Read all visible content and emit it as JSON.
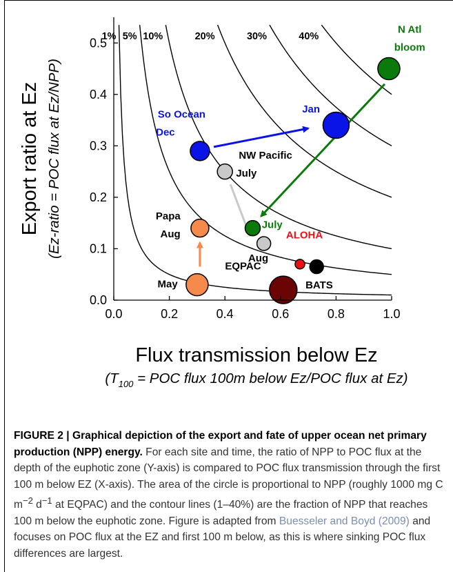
{
  "chart_data": {
    "type": "scatter",
    "title": "",
    "xlabel": "Flux transmission below Ez",
    "xlabel_sub": {
      "pre": "(T",
      "sub": "100",
      "post": " = POC flux 100m below Ez/POC flux at Ez)"
    },
    "ylabel": "Export ratio at Ez",
    "ylabel_sub": "(Ez-ratio = POC flux at Ez/NPP)",
    "xlim": [
      0.0,
      1.0
    ],
    "ylim": [
      0.0,
      0.55
    ],
    "xticks": [
      "0.0",
      "0.2",
      "0.4",
      "0.6",
      "0.8",
      "1.0"
    ],
    "yticks": [
      "0.0",
      "0.1",
      "0.2",
      "0.3",
      "0.4",
      "0.5"
    ],
    "grid": false,
    "contours": [
      {
        "label": "1%",
        "level": 0.01
      },
      {
        "label": "5%",
        "level": 0.05
      },
      {
        "label": "10%",
        "level": 0.1
      },
      {
        "label": "20%",
        "level": 0.2
      },
      {
        "label": "30%",
        "level": 0.3
      },
      {
        "label": "40%",
        "level": 0.4
      }
    ],
    "points": [
      {
        "x": 0.31,
        "y": 0.29,
        "r": 14,
        "color": "#0a14e6"
      },
      {
        "x": 0.8,
        "y": 0.34,
        "r": 19,
        "color": "#0a14e6"
      },
      {
        "x": 0.4,
        "y": 0.25,
        "r": 11,
        "color": "#c9c9c9"
      },
      {
        "x": 0.54,
        "y": 0.11,
        "r": 10,
        "color": "#c9c9c9"
      },
      {
        "x": 0.99,
        "y": 0.45,
        "r": 16,
        "color": "#0a7a0a"
      },
      {
        "x": 0.5,
        "y": 0.14,
        "r": 11,
        "color": "#0a7a0a"
      },
      {
        "x": 0.31,
        "y": 0.14,
        "r": 13,
        "color": "#f58a4a"
      },
      {
        "x": 0.3,
        "y": 0.03,
        "r": 16,
        "color": "#f58a4a"
      },
      {
        "x": 0.61,
        "y": 0.02,
        "r": 20,
        "color": "#6b0505"
      },
      {
        "x": 0.67,
        "y": 0.07,
        "r": 7,
        "color": "#ee1111"
      },
      {
        "x": 0.73,
        "y": 0.065,
        "r": 10,
        "color": "#000000"
      }
    ],
    "annotations": [
      {
        "text": "So Ocean",
        "x": 0.33,
        "y": 0.355,
        "color": "#0a14e6",
        "anchor": "end"
      },
      {
        "text": "Dec",
        "x": 0.22,
        "y": 0.32,
        "color": "#0a14e6",
        "anchor": "end"
      },
      {
        "text": "Jan",
        "x": 0.71,
        "y": 0.365,
        "color": "#0a14e6",
        "anchor": "middle"
      },
      {
        "text": "NW Pacific",
        "x": 0.45,
        "y": 0.275,
        "color": "#000000",
        "anchor": "start"
      },
      {
        "text": "July",
        "x": 0.44,
        "y": 0.24,
        "color": "#000000",
        "anchor": "start"
      },
      {
        "text": "N Atl",
        "x": 1.065,
        "y": 0.52,
        "color": "#0a7a0a",
        "anchor": "middle"
      },
      {
        "text": "bloom",
        "x": 1.065,
        "y": 0.485,
        "color": "#0a7a0a",
        "anchor": "middle"
      },
      {
        "text": "July",
        "x": 0.57,
        "y": 0.14,
        "color": "#0a7a0a",
        "anchor": "middle"
      },
      {
        "text": "Papa",
        "x": 0.24,
        "y": 0.157,
        "color": "#000000",
        "anchor": "end"
      },
      {
        "text": "Aug",
        "x": 0.24,
        "y": 0.122,
        "color": "#000000",
        "anchor": "end"
      },
      {
        "text": "Aug",
        "x": 0.52,
        "y": 0.075,
        "color": "#000000",
        "anchor": "middle"
      },
      {
        "text": "ALOHA",
        "x": 0.62,
        "y": 0.12,
        "color": "#ee1111",
        "anchor": "start"
      },
      {
        "text": "EQPAC",
        "x": 0.53,
        "y": 0.06,
        "color": "#000000",
        "anchor": "end"
      },
      {
        "text": "BATS",
        "x": 0.69,
        "y": 0.023,
        "color": "#000000",
        "anchor": "start"
      },
      {
        "text": "May",
        "x": 0.23,
        "y": 0.025,
        "color": "#000000",
        "anchor": "end"
      }
    ],
    "arrows": [
      {
        "from": [
          0.36,
          0.298
        ],
        "to": [
          0.7,
          0.334
        ],
        "color": "#0a14e6"
      },
      {
        "from": [
          0.975,
          0.42
        ],
        "to": [
          0.53,
          0.163
        ],
        "color": "#0a7a0a"
      },
      {
        "from": [
          0.42,
          0.225
        ],
        "to": [
          0.49,
          0.125
        ],
        "color": "#c9c9c9"
      },
      {
        "from": [
          0.31,
          0.065
        ],
        "to": [
          0.31,
          0.112
        ],
        "color": "#f58a4a"
      }
    ]
  },
  "caption": {
    "lead": "FIGURE 2 | Graphical depiction of the export and fate of upper ocean net primary production (NPP) energy.",
    "part1": " For each site and time, the ratio of NPP to POC flux at the depth of the euphotic zone (Y-axis) is compared to POC flux transmission through the first 100 m below EZ (X-axis). The area of the circle is proportional to NPP (roughly 1000 mg C m",
    "sup1": "−2",
    "part2": " d",
    "sup2": "−1",
    "part3": " at EQPAC) and the contour lines (1–40%) are the fraction of NPP that reaches 100 m below the euphotic zone. Figure is adapted from ",
    "ref": "Buesseler and Boyd (2009)",
    "part4": " and focuses on POC flux at the EZ and first 100 m below, as this is where sinking POC flux differences are largest."
  }
}
